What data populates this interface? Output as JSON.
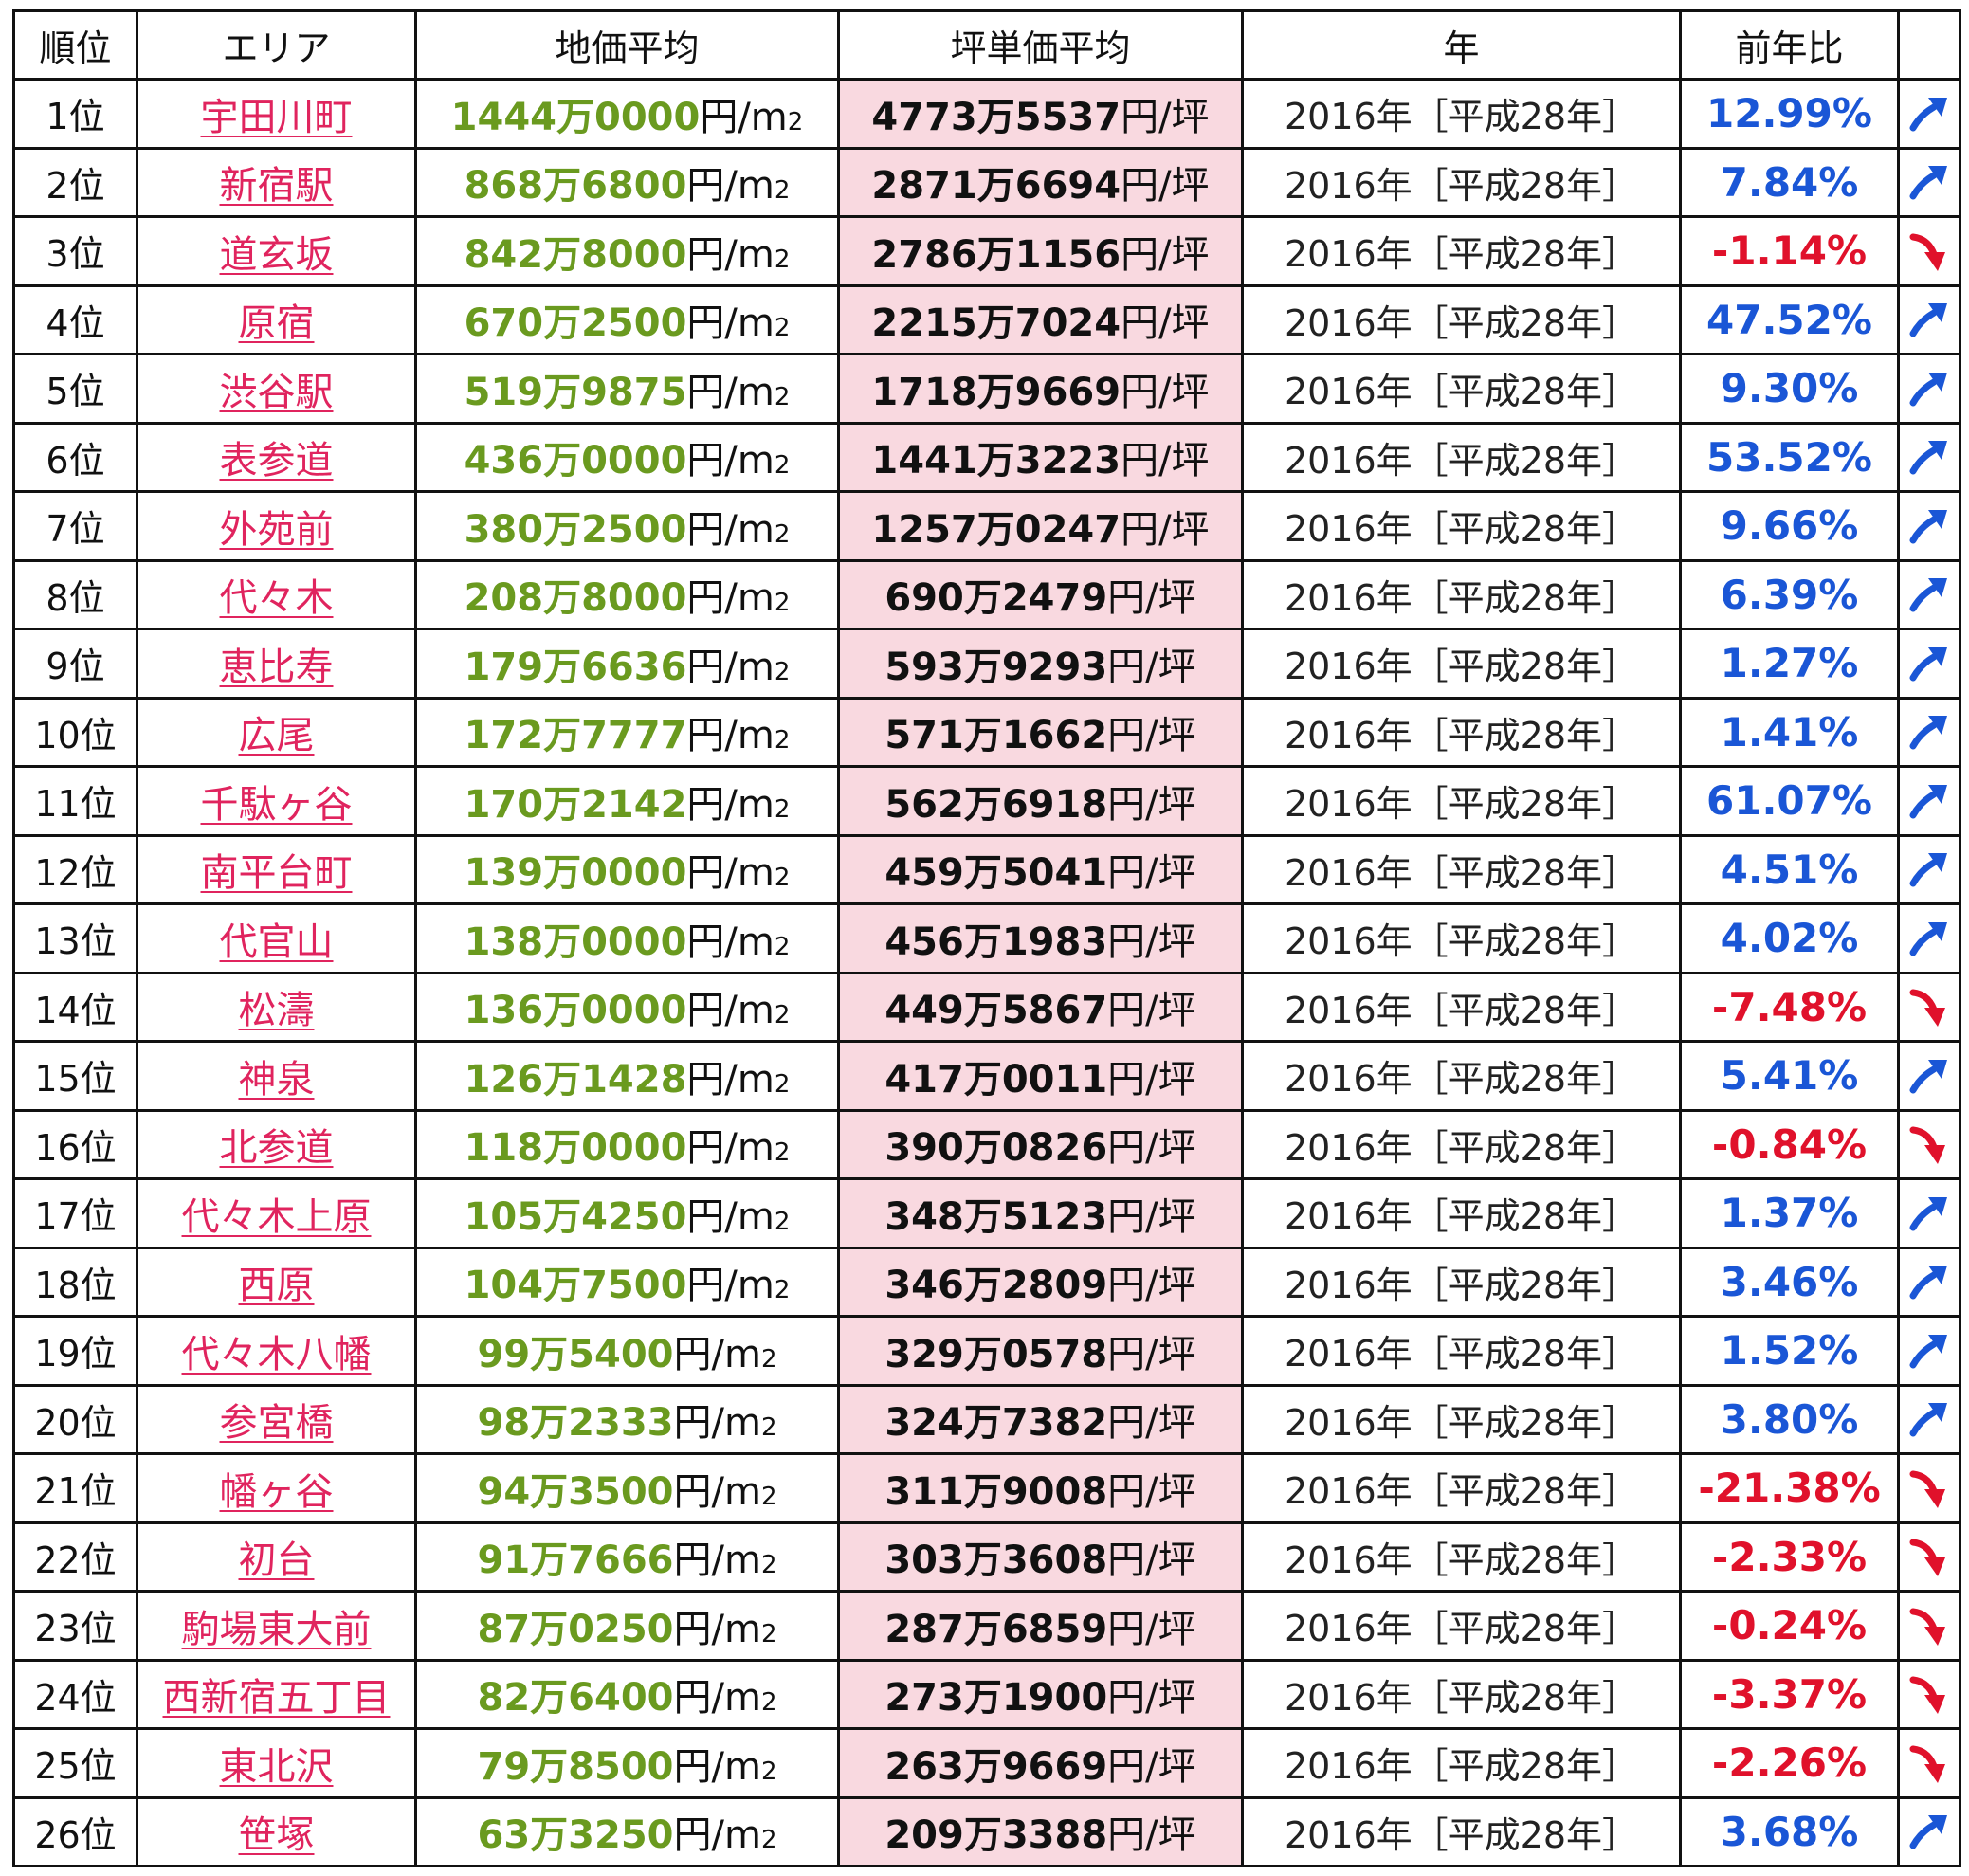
{
  "headers": {
    "rank": "順位",
    "area": "エリア",
    "land_price": "地価平均",
    "tsubo_price": "坪単価平均",
    "year": "年",
    "change": "前年比"
  },
  "units": {
    "land_prefix": "円/m",
    "land_sub": "2",
    "tsubo": "円/坪"
  },
  "colors": {
    "area_link": "#e0245e",
    "land_number": "#6a9a1f",
    "tsubo_bg": "#f9d9e0",
    "up": "#1a56d6",
    "down": "#e0112b"
  },
  "rows": [
    {
      "rank": "1位",
      "area": "宇田川町",
      "land": "1444万0000",
      "tsubo": "4773万5537",
      "year": "2016年［平成28年］",
      "change": "12.99%",
      "trend": "up"
    },
    {
      "rank": "2位",
      "area": "新宿駅",
      "land": "868万6800",
      "tsubo": "2871万6694",
      "year": "2016年［平成28年］",
      "change": "7.84%",
      "trend": "up"
    },
    {
      "rank": "3位",
      "area": "道玄坂",
      "land": "842万8000",
      "tsubo": "2786万1156",
      "year": "2016年［平成28年］",
      "change": "-1.14%",
      "trend": "down"
    },
    {
      "rank": "4位",
      "area": "原宿",
      "land": "670万2500",
      "tsubo": "2215万7024",
      "year": "2016年［平成28年］",
      "change": "47.52%",
      "trend": "up"
    },
    {
      "rank": "5位",
      "area": "渋谷駅",
      "land": "519万9875",
      "tsubo": "1718万9669",
      "year": "2016年［平成28年］",
      "change": "9.30%",
      "trend": "up"
    },
    {
      "rank": "6位",
      "area": "表参道",
      "land": "436万0000",
      "tsubo": "1441万3223",
      "year": "2016年［平成28年］",
      "change": "53.52%",
      "trend": "up"
    },
    {
      "rank": "7位",
      "area": "外苑前",
      "land": "380万2500",
      "tsubo": "1257万0247",
      "year": "2016年［平成28年］",
      "change": "9.66%",
      "trend": "up"
    },
    {
      "rank": "8位",
      "area": "代々木",
      "land": "208万8000",
      "tsubo": "690万2479",
      "year": "2016年［平成28年］",
      "change": "6.39%",
      "trend": "up"
    },
    {
      "rank": "9位",
      "area": "恵比寿",
      "land": "179万6636",
      "tsubo": "593万9293",
      "year": "2016年［平成28年］",
      "change": "1.27%",
      "trend": "up"
    },
    {
      "rank": "10位",
      "area": "広尾",
      "land": "172万7777",
      "tsubo": "571万1662",
      "year": "2016年［平成28年］",
      "change": "1.41%",
      "trend": "up"
    },
    {
      "rank": "11位",
      "area": "千駄ヶ谷",
      "land": "170万2142",
      "tsubo": "562万6918",
      "year": "2016年［平成28年］",
      "change": "61.07%",
      "trend": "up"
    },
    {
      "rank": "12位",
      "area": "南平台町",
      "land": "139万0000",
      "tsubo": "459万5041",
      "year": "2016年［平成28年］",
      "change": "4.51%",
      "trend": "up"
    },
    {
      "rank": "13位",
      "area": "代官山",
      "land": "138万0000",
      "tsubo": "456万1983",
      "year": "2016年［平成28年］",
      "change": "4.02%",
      "trend": "up"
    },
    {
      "rank": "14位",
      "area": "松濤",
      "land": "136万0000",
      "tsubo": "449万5867",
      "year": "2016年［平成28年］",
      "change": "-7.48%",
      "trend": "down"
    },
    {
      "rank": "15位",
      "area": "神泉",
      "land": "126万1428",
      "tsubo": "417万0011",
      "year": "2016年［平成28年］",
      "change": "5.41%",
      "trend": "up"
    },
    {
      "rank": "16位",
      "area": "北参道",
      "land": "118万0000",
      "tsubo": "390万0826",
      "year": "2016年［平成28年］",
      "change": "-0.84%",
      "trend": "down"
    },
    {
      "rank": "17位",
      "area": "代々木上原",
      "land": "105万4250",
      "tsubo": "348万5123",
      "year": "2016年［平成28年］",
      "change": "1.37%",
      "trend": "up"
    },
    {
      "rank": "18位",
      "area": "西原",
      "land": "104万7500",
      "tsubo": "346万2809",
      "year": "2016年［平成28年］",
      "change": "3.46%",
      "trend": "up"
    },
    {
      "rank": "19位",
      "area": "代々木八幡",
      "land": "99万5400",
      "tsubo": "329万0578",
      "year": "2016年［平成28年］",
      "change": "1.52%",
      "trend": "up"
    },
    {
      "rank": "20位",
      "area": "参宮橋",
      "land": "98万2333",
      "tsubo": "324万7382",
      "year": "2016年［平成28年］",
      "change": "3.80%",
      "trend": "up"
    },
    {
      "rank": "21位",
      "area": "幡ヶ谷",
      "land": "94万3500",
      "tsubo": "311万9008",
      "year": "2016年［平成28年］",
      "change": "-21.38%",
      "trend": "down"
    },
    {
      "rank": "22位",
      "area": "初台",
      "land": "91万7666",
      "tsubo": "303万3608",
      "year": "2016年［平成28年］",
      "change": "-2.33%",
      "trend": "down"
    },
    {
      "rank": "23位",
      "area": "駒場東大前",
      "land": "87万0250",
      "tsubo": "287万6859",
      "year": "2016年［平成28年］",
      "change": "-0.24%",
      "trend": "down"
    },
    {
      "rank": "24位",
      "area": "西新宿五丁目",
      "land": "82万6400",
      "tsubo": "273万1900",
      "year": "2016年［平成28年］",
      "change": "-3.37%",
      "trend": "down"
    },
    {
      "rank": "25位",
      "area": "東北沢",
      "land": "79万8500",
      "tsubo": "263万9669",
      "year": "2016年［平成28年］",
      "change": "-2.26%",
      "trend": "down"
    },
    {
      "rank": "26位",
      "area": "笹塚",
      "land": "63万3250",
      "tsubo": "209万3388",
      "year": "2016年［平成28年］",
      "change": "3.68%",
      "trend": "up"
    }
  ]
}
